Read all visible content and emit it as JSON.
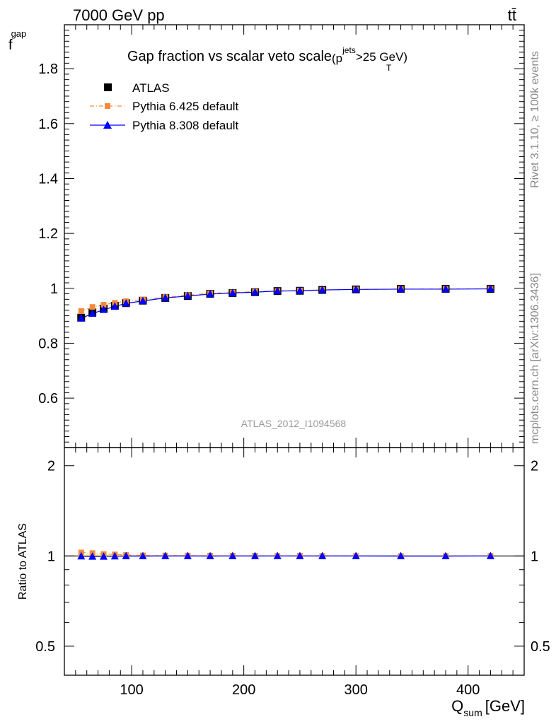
{
  "header": {
    "energy_label": "7000 GeV pp",
    "process_label": "tt̄",
    "side_top": "Rivet 3.1.10, ≥ 100k events",
    "side_bottom": "mcplots.cern.ch [arXiv:1306.3436]",
    "analysis_id": "ATLAS_2012_I1094568"
  },
  "chart_data": {
    "type": "line",
    "title_main": "Gap fraction vs scalar veto scale",
    "title_cut": "(p",
    "title_cut_sup": "jets",
    "title_cut_sub": "T",
    "title_cut_tail": ">25 GeV)",
    "xlabel": "Q",
    "xlabel_sub": "sum",
    "xlabel_unit": "[GeV]",
    "ylabel": "f",
    "ylabel_sub": "gap",
    "ratio_ylabel": "Ratio to ATLAS",
    "xlim": [
      40,
      450
    ],
    "ylim": [
      0.42,
      1.96
    ],
    "ratio_ylim": [
      0.4,
      2.3
    ],
    "x_ticks": [
      100,
      200,
      300,
      400
    ],
    "y_ticks": [
      0.6,
      0.8,
      1,
      1.2,
      1.4,
      1.6,
      1.8
    ],
    "ratio_ticks": [
      0.5,
      1,
      2
    ],
    "x": [
      55,
      65,
      75,
      85,
      95,
      110,
      130,
      150,
      170,
      190,
      210,
      230,
      250,
      270,
      300,
      340,
      380,
      420
    ],
    "series": [
      {
        "name": "ATLAS",
        "color": "#000000",
        "marker": "square",
        "values": [
          0.893,
          0.912,
          0.926,
          0.936,
          0.946,
          0.955,
          0.965,
          0.972,
          0.98,
          0.983,
          0.986,
          0.99,
          0.991,
          0.994,
          0.996,
          0.998,
          0.998,
          0.998
        ]
      },
      {
        "name": "Pythia 6.425 default",
        "color": "#f58a3c",
        "marker": "square",
        "values": [
          0.917,
          0.932,
          0.94,
          0.947,
          0.953,
          0.959,
          0.968,
          0.975,
          0.982,
          0.985,
          0.988,
          0.99,
          0.992,
          0.994,
          0.996,
          0.997,
          0.998,
          0.998
        ],
        "ratio": [
          1.027,
          1.022,
          1.015,
          1.012,
          1.007,
          1.004,
          1.003,
          1.003,
          1.002,
          1.002,
          1.002,
          1.0,
          1.001,
          1.0,
          1.0,
          0.999,
          1.0,
          1.0
        ]
      },
      {
        "name": "Pythia 8.308 default",
        "color": "#0000ff",
        "marker": "triangle",
        "values": [
          0.891,
          0.908,
          0.922,
          0.934,
          0.945,
          0.954,
          0.965,
          0.972,
          0.979,
          0.983,
          0.986,
          0.99,
          0.991,
          0.994,
          0.996,
          0.997,
          0.997,
          0.998
        ],
        "ratio": [
          0.998,
          0.996,
          0.996,
          0.998,
          0.999,
          0.999,
          1.0,
          1.0,
          0.999,
          1.0,
          1.0,
          1.0,
          1.0,
          1.0,
          1.0,
          0.999,
          0.999,
          1.0
        ]
      }
    ]
  }
}
